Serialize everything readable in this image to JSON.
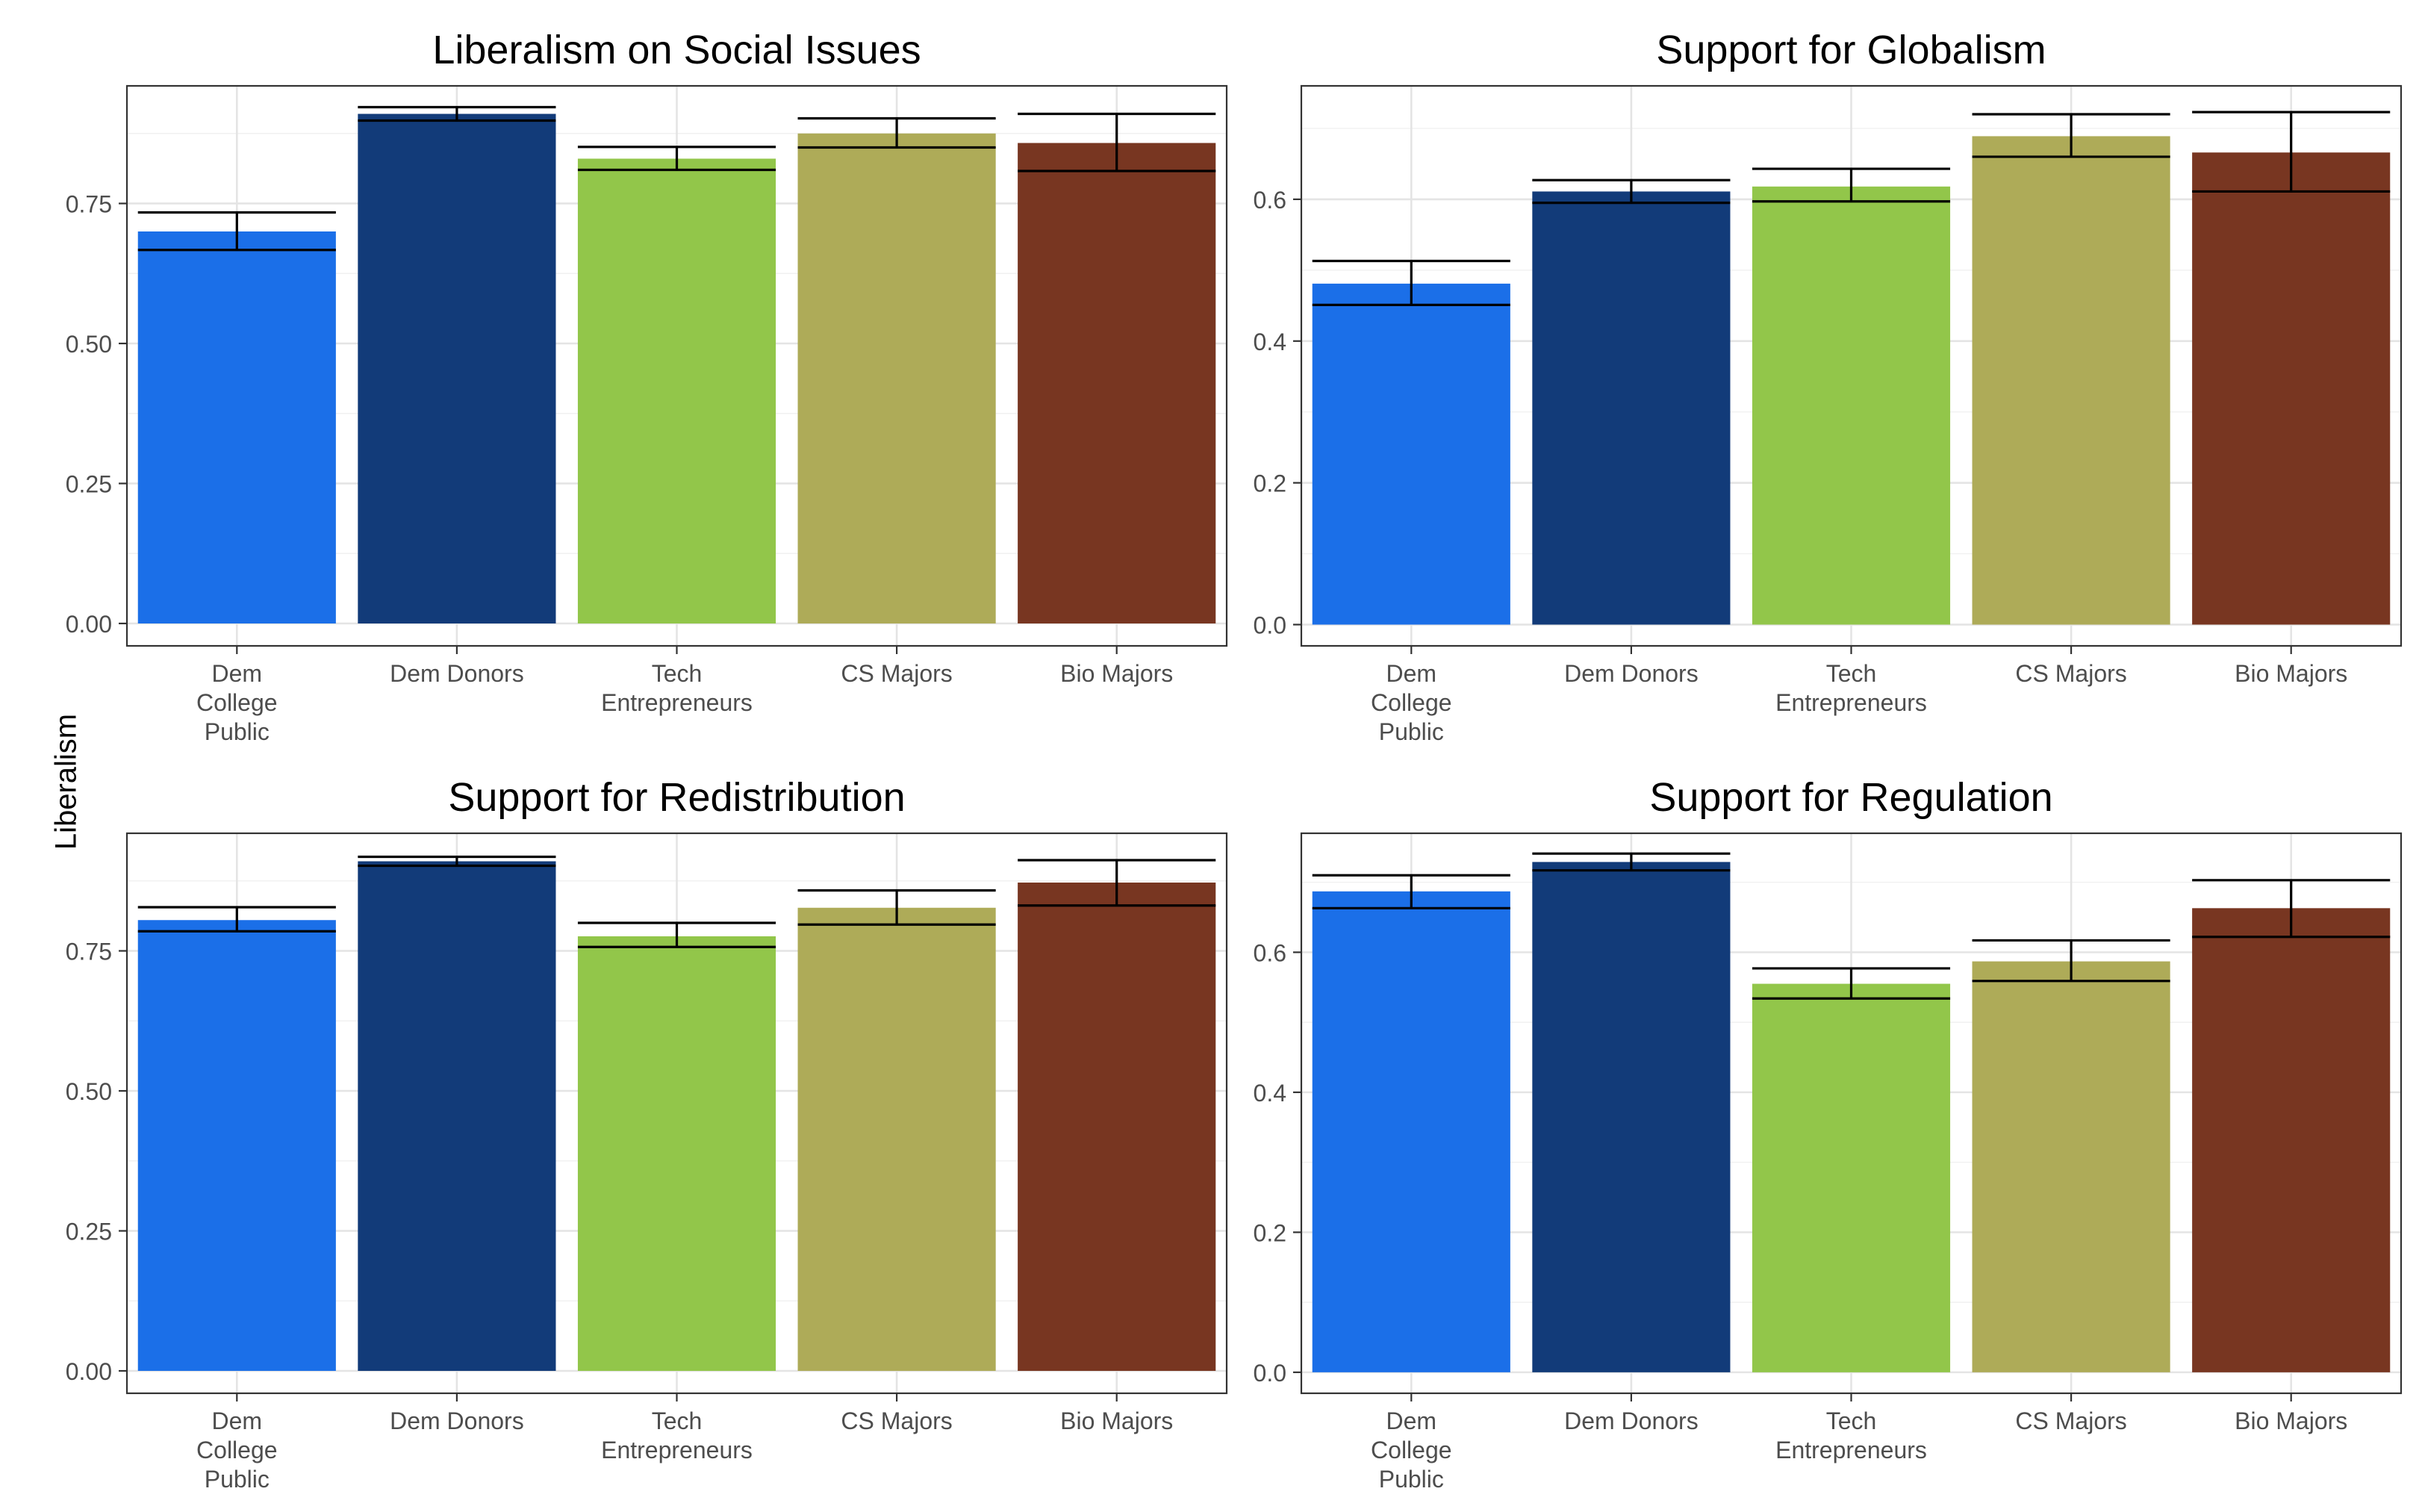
{
  "figure": {
    "ylabel": "Liberalism"
  },
  "chart_data": [
    {
      "type": "bar",
      "title": "Liberalism on Social Issues",
      "categories": [
        "Dem\nCollege\nPublic",
        "Dem Donors",
        "Tech\nEntrepreneurs",
        "CS Majors",
        "Bio Majors"
      ],
      "values": [
        0.7,
        0.91,
        0.83,
        0.875,
        0.858
      ],
      "error_low": [
        0.667,
        0.898,
        0.81,
        0.85,
        0.808
      ],
      "error_high": [
        0.734,
        0.922,
        0.851,
        0.902,
        0.91
      ],
      "colors": [
        "#1b6fe8",
        "#123b79",
        "#92c64a",
        "#aeab58",
        "#783621"
      ],
      "ylim": [
        -0.04,
        0.96
      ],
      "yticks": [
        0.0,
        0.25,
        0.5,
        0.75
      ],
      "ytick_labels": [
        "0.00",
        "0.25",
        "0.50",
        "0.75"
      ],
      "grid": true
    },
    {
      "type": "bar",
      "title": "Support for Globalism",
      "categories": [
        "Dem\nCollege\nPublic",
        "Dem Donors",
        "Tech\nEntrepreneurs",
        "CS Majors",
        "Bio Majors"
      ],
      "values": [
        0.481,
        0.611,
        0.618,
        0.689,
        0.666
      ],
      "error_low": [
        0.451,
        0.595,
        0.597,
        0.66,
        0.611
      ],
      "error_high": [
        0.513,
        0.627,
        0.643,
        0.72,
        0.723
      ],
      "colors": [
        "#1b6fe8",
        "#123b79",
        "#92c64a",
        "#aeab58",
        "#783621"
      ],
      "ylim": [
        -0.03,
        0.76
      ],
      "yticks": [
        0.0,
        0.2,
        0.4,
        0.6
      ],
      "ytick_labels": [
        "0.0",
        "0.2",
        "0.4",
        "0.6"
      ],
      "grid": true
    },
    {
      "type": "bar",
      "title": "Support for Redistribution",
      "categories": [
        "Dem\nCollege\nPublic",
        "Dem Donors",
        "Tech\nEntrepreneurs",
        "CS Majors",
        "Bio Majors"
      ],
      "values": [
        0.805,
        0.91,
        0.776,
        0.827,
        0.872
      ],
      "error_low": [
        0.785,
        0.902,
        0.757,
        0.797,
        0.831
      ],
      "error_high": [
        0.828,
        0.918,
        0.8,
        0.858,
        0.912
      ],
      "colors": [
        "#1b6fe8",
        "#123b79",
        "#92c64a",
        "#aeab58",
        "#783621"
      ],
      "ylim": [
        -0.04,
        0.96
      ],
      "yticks": [
        0.0,
        0.25,
        0.5,
        0.75
      ],
      "ytick_labels": [
        "0.00",
        "0.25",
        "0.50",
        "0.75"
      ],
      "grid": true
    },
    {
      "type": "bar",
      "title": "Support for Regulation",
      "categories": [
        "Dem\nCollege\nPublic",
        "Dem Donors",
        "Tech\nEntrepreneurs",
        "CS Majors",
        "Bio Majors"
      ],
      "values": [
        0.687,
        0.729,
        0.555,
        0.587,
        0.663
      ],
      "error_low": [
        0.663,
        0.717,
        0.534,
        0.559,
        0.622
      ],
      "error_high": [
        0.71,
        0.741,
        0.577,
        0.617,
        0.703
      ],
      "colors": [
        "#1b6fe8",
        "#123b79",
        "#92c64a",
        "#aeab58",
        "#783621"
      ],
      "ylim": [
        -0.03,
        0.77
      ],
      "yticks": [
        0.0,
        0.2,
        0.4,
        0.6
      ],
      "ytick_labels": [
        "0.0",
        "0.2",
        "0.4",
        "0.6"
      ],
      "grid": true
    }
  ]
}
